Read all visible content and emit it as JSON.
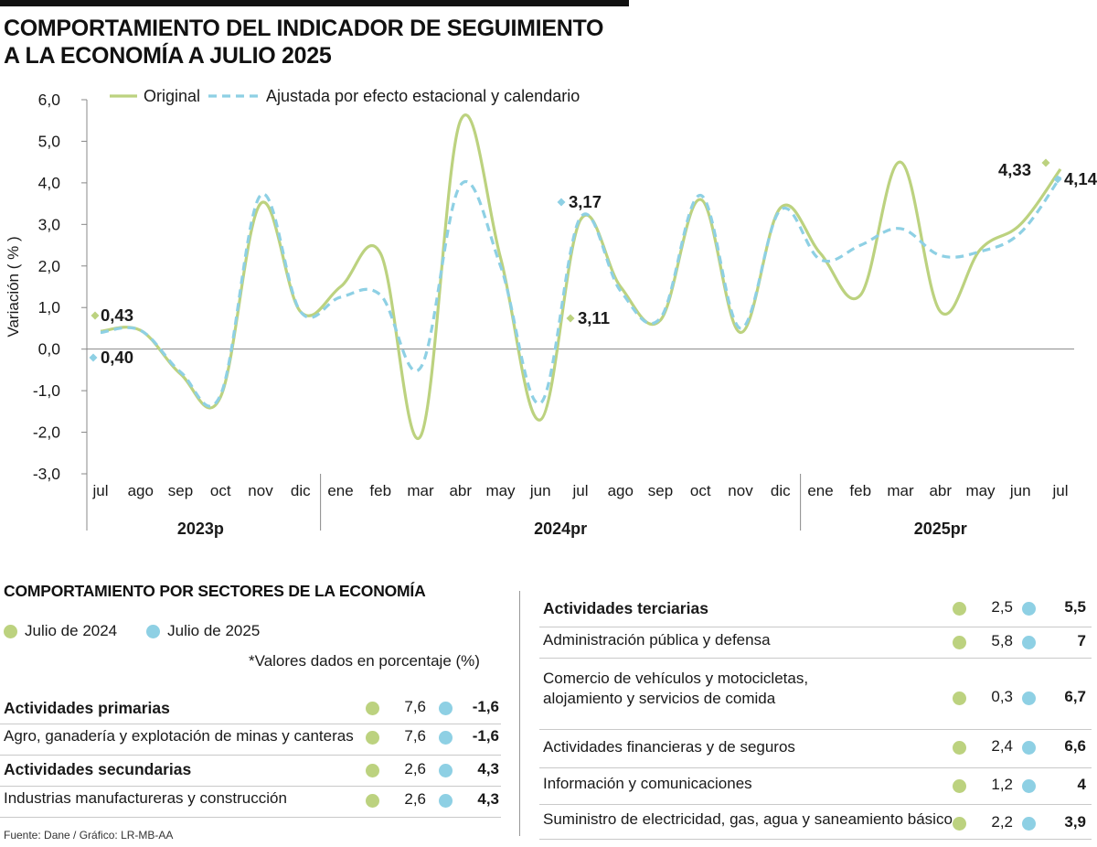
{
  "title_line1": "COMPORTAMIENTO DEL INDICADOR DE SEGUIMIENTO",
  "title_line2": "A LA ECONOMÍA A JULIO 2025",
  "colors": {
    "original": "#bcd27f",
    "ajustada": "#8ed0e4",
    "axis": "#888888",
    "text": "#1a1a1a"
  },
  "chart_data": {
    "type": "line",
    "ylabel": "Variación ( % )",
    "ylim": [
      -3.0,
      6.0
    ],
    "yticks": [
      "6,0",
      "5,0",
      "4,0",
      "3,0",
      "2,0",
      "1,0",
      "0,0",
      "-1,0",
      "-2,0",
      "-3,0"
    ],
    "ytick_values": [
      6,
      5,
      4,
      3,
      2,
      1,
      0,
      -1,
      -2,
      -3
    ],
    "categories": [
      "jul",
      "ago",
      "sep",
      "oct",
      "nov",
      "dic",
      "ene",
      "feb",
      "mar",
      "abr",
      "may",
      "jun",
      "jul",
      "ago",
      "sep",
      "oct",
      "nov",
      "dic",
      "ene",
      "feb",
      "mar",
      "abr",
      "may",
      "jun",
      "jul"
    ],
    "year_groups": [
      {
        "label": "2023p",
        "start": 0,
        "end": 5
      },
      {
        "label": "2024pr",
        "start": 6,
        "end": 17
      },
      {
        "label": "2025pr",
        "start": 18,
        "end": 24
      }
    ],
    "legend_position": "top",
    "series": [
      {
        "name": "Original",
        "style": "solid",
        "values": [
          0.43,
          0.45,
          -0.6,
          -1.15,
          3.5,
          0.9,
          1.5,
          2.3,
          -2.1,
          5.5,
          2.2,
          -1.7,
          3.11,
          1.5,
          0.7,
          3.6,
          0.4,
          3.4,
          2.3,
          1.3,
          4.5,
          0.9,
          2.4,
          3.0,
          4.33
        ]
      },
      {
        "name": "Ajustada por efecto estacional y calendario",
        "style": "dashed",
        "values": [
          0.4,
          0.45,
          -0.55,
          -1.1,
          3.7,
          0.9,
          1.25,
          1.3,
          -0.45,
          3.95,
          2.0,
          -1.3,
          3.17,
          1.4,
          0.75,
          3.7,
          0.5,
          3.35,
          2.15,
          2.5,
          2.9,
          2.25,
          2.35,
          2.8,
          4.14
        ]
      }
    ],
    "annotations": [
      {
        "text": "0,43",
        "index": 0,
        "value": 0.43,
        "series": "Original"
      },
      {
        "text": "0,40",
        "index": 0,
        "value": 0.4,
        "series": "Ajustada por efecto estacional y calendario"
      },
      {
        "text": "3,17",
        "index": 12,
        "value": 3.17,
        "series": "Ajustada por efecto estacional y calendario"
      },
      {
        "text": "3,11",
        "index": 12,
        "value": 3.11,
        "series": "Original"
      },
      {
        "text": "4,33",
        "index": 24,
        "value": 4.33,
        "series": "Original"
      },
      {
        "text": "4,14",
        "index": 24,
        "value": 4.14,
        "series": "Ajustada por efecto estacional y calendario"
      }
    ]
  },
  "sectors": {
    "title": "COMPORTAMIENTO POR SECTORES DE LA ECONOMÍA",
    "legend": {
      "a": "Julio de 2024",
      "b": "Julio de 2025"
    },
    "note": "*Valores dados en porcentaje (%)",
    "left": [
      {
        "label": "Actividades primarias",
        "bold": true,
        "v2024": "7,6",
        "v2025": "-1,6"
      },
      {
        "label": "Agro, ganadería y explotación de minas y canteras",
        "bold": false,
        "v2024": "7,6",
        "v2025": "-1,6"
      },
      {
        "label": "Actividades secundarias",
        "bold": true,
        "v2024": "2,6",
        "v2025": "4,3"
      },
      {
        "label": "Industrias manufactureras y construcción",
        "bold": false,
        "v2024": "2,6",
        "v2025": "4,3"
      }
    ],
    "right": [
      {
        "label": "Actividades terciarias",
        "bold": true,
        "v2024": "2,5",
        "v2025": "5,5"
      },
      {
        "label": "Administración pública y defensa",
        "bold": false,
        "v2024": "5,8",
        "v2025": "7"
      },
      {
        "label": "Comercio de vehículos y motocicletas,",
        "label2": "alojamiento y servicios de comida",
        "bold": false,
        "v2024": "0,3",
        "v2025": "6,7"
      },
      {
        "label": "Actividades financieras y de seguros",
        "bold": false,
        "v2024": "2,4",
        "v2025": "6,6"
      },
      {
        "label": "Información y comunicaciones",
        "bold": false,
        "v2024": "1,2",
        "v2025": "4"
      },
      {
        "label": "Suministro de electricidad, gas, agua y saneamiento básico",
        "bold": false,
        "v2024": "2,2",
        "v2025": "3,9"
      }
    ]
  },
  "source": "Fuente: Dane / Gráfico: LR-MB-AA"
}
